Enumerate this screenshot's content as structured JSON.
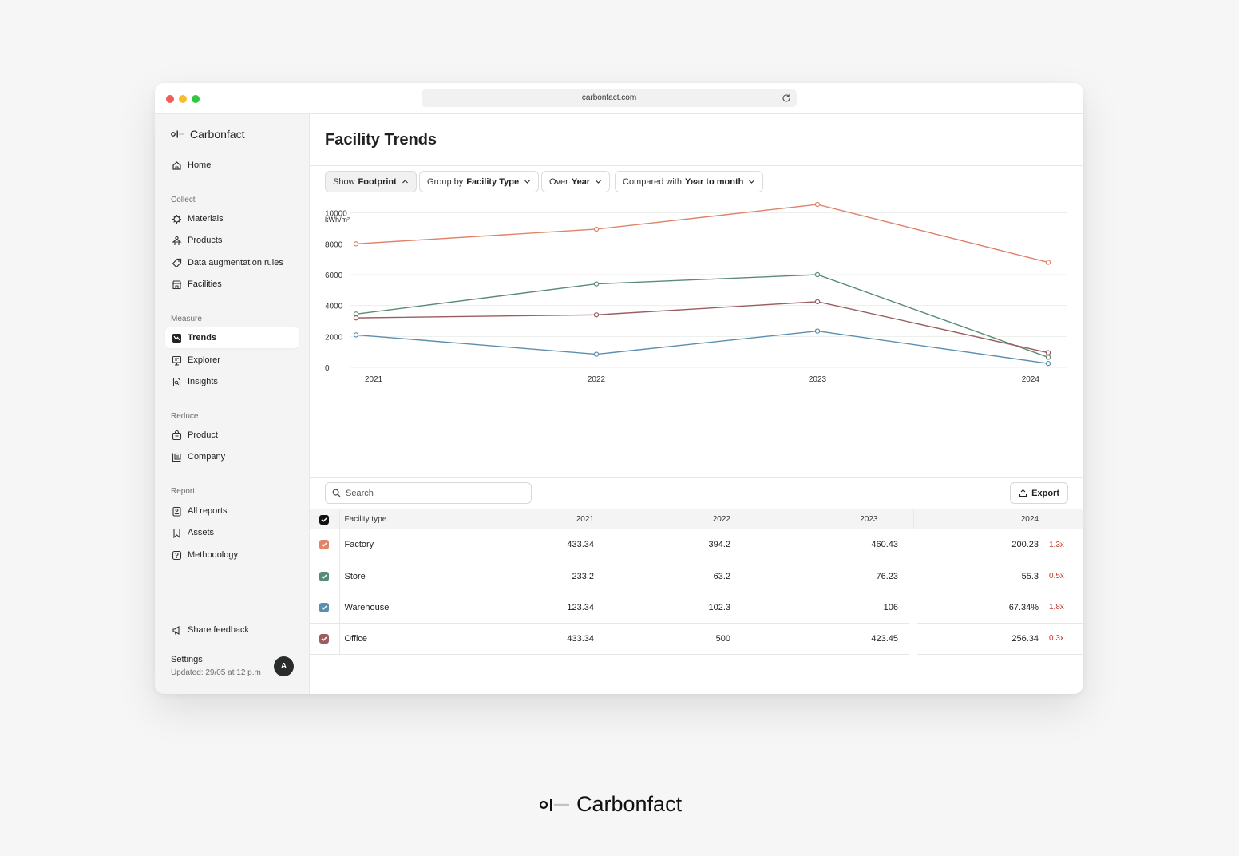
{
  "browser": {
    "url": "carbonfact.com"
  },
  "sidebar": {
    "brand": "Carbonfact",
    "home": "Home",
    "sections": {
      "collect": "Collect",
      "measure": "Measure",
      "reduce": "Reduce",
      "report": "Report"
    },
    "items": {
      "materials": "Materials",
      "products": "Products",
      "data_augmentation": "Data augmentation rules",
      "facilities": "Facilities",
      "trends": "Trends",
      "explorer": "Explorer",
      "insights": "Insights",
      "product": "Product",
      "company": "Company",
      "all_reports": "All reports",
      "assets": "Assets",
      "methodology": "Methodology"
    },
    "share_feedback": "Share feedback",
    "settings": "Settings",
    "updated": "Updated: 29/05 at 12 p.m",
    "avatar_initial": "A"
  },
  "main": {
    "title": "Facility Trends",
    "filters": {
      "show_label": "Show",
      "show_value": "Footprint",
      "group_label": "Group by",
      "group_value": "Facility Type",
      "over_label": "Over",
      "over_value": "Year",
      "compared_label": "Compared with",
      "compared_value": "Year to month"
    }
  },
  "chart_data": {
    "type": "line",
    "ylabel": "kWh/m²",
    "x": [
      "2021",
      "2022",
      "2023",
      "2024"
    ],
    "yticks": [
      0,
      2000,
      4000,
      6000,
      8000,
      10000
    ],
    "ylim": [
      0,
      10500
    ],
    "grid": true,
    "series": [
      {
        "color": "#e0836a",
        "values": [
          8000,
          8950,
          10550,
          6800
        ]
      },
      {
        "color": "#5a8a78",
        "values": [
          3450,
          5400,
          6000,
          650
        ]
      },
      {
        "color": "#9a5e60",
        "values": [
          3200,
          3400,
          4250,
          950
        ]
      },
      {
        "color": "#5b8fb0",
        "values": [
          2100,
          850,
          2350,
          250
        ]
      }
    ]
  },
  "table": {
    "search_placeholder": "Search",
    "export_label": "Export",
    "headers": [
      "Facility type",
      "2021",
      "2022",
      "2023",
      "2024"
    ],
    "rows": [
      {
        "name": "Factory",
        "color": "#e0836a",
        "v2021": "433.34",
        "v2022": "394.2",
        "v2023": "460.43",
        "v2024": "200.23",
        "mult": "1.3x"
      },
      {
        "name": "Store",
        "color": "#5a8a78",
        "v2021": "233.2",
        "v2022": "63.2",
        "v2023": "76.23",
        "v2024": "55.3",
        "mult": "0.5x"
      },
      {
        "name": "Warehouse",
        "color": "#5b8fb0",
        "v2021": "123.34",
        "v2022": "102.3",
        "v2023": "106",
        "v2024": "67.34%",
        "mult": "1.8x"
      },
      {
        "name": "Office",
        "color": "#9a5e60",
        "v2021": "433.34",
        "v2022": "500",
        "v2023": "423.45",
        "v2024": "256.34",
        "mult": "0.3x"
      }
    ]
  },
  "footer": {
    "brand": "Carbonfact"
  }
}
